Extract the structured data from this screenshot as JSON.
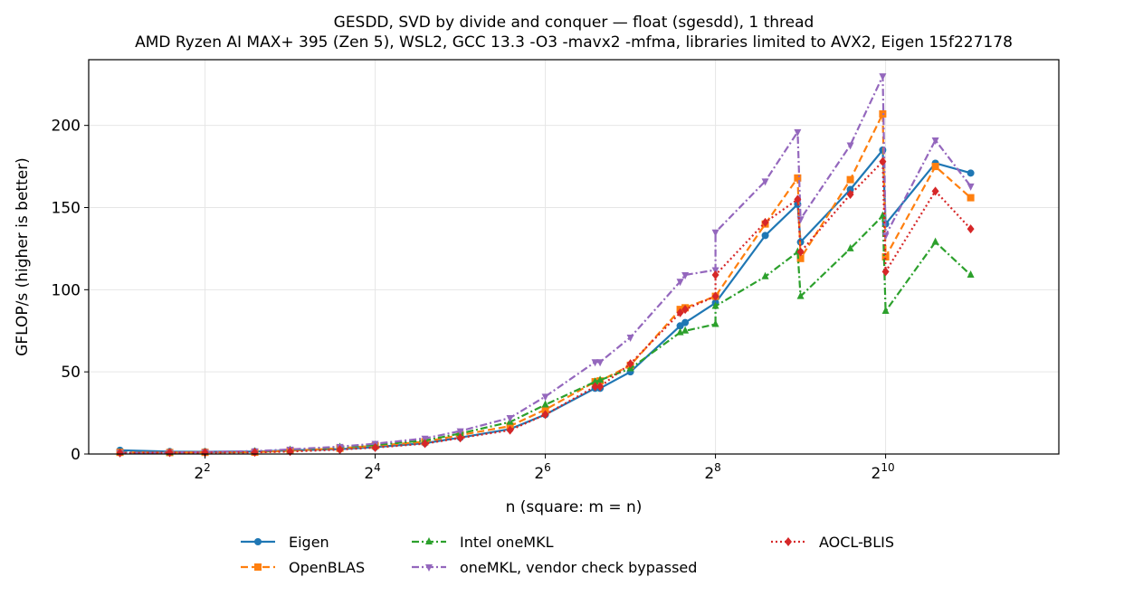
{
  "chart_data": {
    "type": "line",
    "title": "GESDD, SVD by divide and conquer — float (sgesdd), 1 thread",
    "subtitle": "AMD Ryzen AI MAX+ 395 (Zen 5), WSL2, GCC 13.3 -O3 -mavx2 -mfma, libraries limited to AVX2, Eigen 15f227178",
    "xlabel": "n (square: m = n)",
    "ylabel": "GFLOP/s (higher is better)",
    "x_scale": "log2",
    "xlim": [
      1.55,
      4200
    ],
    "ylim": [
      0,
      240
    ],
    "x_ticks": [
      {
        "value": 4,
        "base": "2",
        "exp": "2"
      },
      {
        "value": 16,
        "base": "2",
        "exp": "4"
      },
      {
        "value": 64,
        "base": "2",
        "exp": "6"
      },
      {
        "value": 256,
        "base": "2",
        "exp": "8"
      },
      {
        "value": 1024,
        "base": "2",
        "exp": "10"
      }
    ],
    "y_ticks": [
      0,
      50,
      100,
      150,
      200
    ],
    "grid": true,
    "legend_position": "bottom",
    "series": [
      {
        "name": "Eigen",
        "color": "#1f77b4",
        "marker": "circle",
        "dash": "solid",
        "points": [
          [
            2,
            2.3
          ],
          [
            3,
            1.5
          ],
          [
            4,
            1.4
          ],
          [
            6,
            1.5
          ],
          [
            8,
            2.2
          ],
          [
            12,
            3.0
          ],
          [
            16,
            4.2
          ],
          [
            24,
            6.6
          ],
          [
            32,
            10.0
          ],
          [
            48,
            15.2
          ],
          [
            64,
            24.0
          ],
          [
            96,
            40.0
          ],
          [
            100,
            40.0
          ],
          [
            128,
            50.0
          ],
          [
            192,
            78.0
          ],
          [
            200,
            80.0
          ],
          [
            256,
            92.0
          ],
          [
            384,
            133.0
          ],
          [
            500,
            152.0
          ],
          [
            512,
            129.0
          ],
          [
            768,
            161.0
          ],
          [
            1000,
            185.0
          ],
          [
            1024,
            140.0
          ],
          [
            1536,
            177.0
          ],
          [
            2048,
            171.0
          ]
        ]
      },
      {
        "name": "OpenBLAS",
        "color": "#ff7f0e",
        "marker": "square",
        "dash": "dashed",
        "points": [
          [
            2,
            1.0
          ],
          [
            3,
            0.9
          ],
          [
            4,
            1.0
          ],
          [
            6,
            1.1
          ],
          [
            8,
            2.0
          ],
          [
            12,
            3.5
          ],
          [
            16,
            5.0
          ],
          [
            24,
            7.5
          ],
          [
            32,
            11.5
          ],
          [
            48,
            17.0
          ],
          [
            64,
            27.0
          ],
          [
            96,
            44.0
          ],
          [
            100,
            44.5
          ],
          [
            128,
            54.0
          ],
          [
            192,
            88.0
          ],
          [
            200,
            89.0
          ],
          [
            256,
            96.0
          ],
          [
            384,
            140.0
          ],
          [
            500,
            168.0
          ],
          [
            512,
            119.0
          ],
          [
            768,
            167.0
          ],
          [
            1000,
            207.0
          ],
          [
            1024,
            120.0
          ],
          [
            1536,
            175.0
          ],
          [
            2048,
            156.0
          ]
        ]
      },
      {
        "name": "Intel oneMKL",
        "color": "#2ca02c",
        "marker": "triangle-up",
        "dash": "dashdot",
        "points": [
          [
            2,
            1.0
          ],
          [
            3,
            0.9
          ],
          [
            4,
            1.2
          ],
          [
            6,
            1.5
          ],
          [
            8,
            2.5
          ],
          [
            12,
            4.2
          ],
          [
            16,
            5.5
          ],
          [
            24,
            8.2
          ],
          [
            32,
            12.5
          ],
          [
            48,
            19.5
          ],
          [
            64,
            30.0
          ],
          [
            96,
            44.0
          ],
          [
            100,
            45.0
          ],
          [
            128,
            52.0
          ],
          [
            192,
            74.0
          ],
          [
            200,
            75.0
          ],
          [
            256,
            79.0
          ],
          [
            256,
            90.0
          ],
          [
            384,
            108.0
          ],
          [
            500,
            123.0
          ],
          [
            512,
            96.0
          ],
          [
            768,
            125.0
          ],
          [
            1000,
            145.0
          ],
          [
            1024,
            87.0
          ],
          [
            1536,
            129.0
          ],
          [
            2048,
            109.0
          ]
        ]
      },
      {
        "name": "oneMKL, vendor check bypassed",
        "color": "#9467bd",
        "marker": "triangle-down",
        "dash": "dashdot",
        "points": [
          [
            2,
            0.8
          ],
          [
            3,
            0.9
          ],
          [
            4,
            1.2
          ],
          [
            6,
            1.8
          ],
          [
            8,
            2.8
          ],
          [
            12,
            4.5
          ],
          [
            16,
            6.3
          ],
          [
            24,
            9.5
          ],
          [
            32,
            14.0
          ],
          [
            48,
            22.0
          ],
          [
            64,
            35.0
          ],
          [
            96,
            56.0
          ],
          [
            100,
            56.0
          ],
          [
            128,
            71.0
          ],
          [
            192,
            105.0
          ],
          [
            200,
            109.0
          ],
          [
            256,
            112.0
          ],
          [
            256,
            135.0
          ],
          [
            384,
            166.0
          ],
          [
            500,
            196.0
          ],
          [
            512,
            143.0
          ],
          [
            768,
            188.0
          ],
          [
            1000,
            230.0
          ],
          [
            1024,
            133.0
          ],
          [
            1536,
            191.0
          ],
          [
            2048,
            163.0
          ]
        ]
      },
      {
        "name": "AOCL-BLIS",
        "color": "#d62728",
        "marker": "diamond",
        "dash": "dotted",
        "points": [
          [
            2,
            0.6
          ],
          [
            3,
            0.8
          ],
          [
            4,
            0.9
          ],
          [
            6,
            1.0
          ],
          [
            8,
            1.5
          ],
          [
            12,
            2.7
          ],
          [
            16,
            3.9
          ],
          [
            24,
            6.3
          ],
          [
            32,
            9.8
          ],
          [
            48,
            14.5
          ],
          [
            64,
            24.0
          ],
          [
            96,
            41.0
          ],
          [
            100,
            41.0
          ],
          [
            128,
            55.0
          ],
          [
            192,
            86.0
          ],
          [
            200,
            88.0
          ],
          [
            256,
            96.0
          ],
          [
            256,
            109.0
          ],
          [
            384,
            141.0
          ],
          [
            500,
            155.0
          ],
          [
            512,
            123.0
          ],
          [
            768,
            158.0
          ],
          [
            1000,
            178.0
          ],
          [
            1024,
            111.0
          ],
          [
            1536,
            160.0
          ],
          [
            2048,
            137.0
          ]
        ]
      }
    ]
  }
}
